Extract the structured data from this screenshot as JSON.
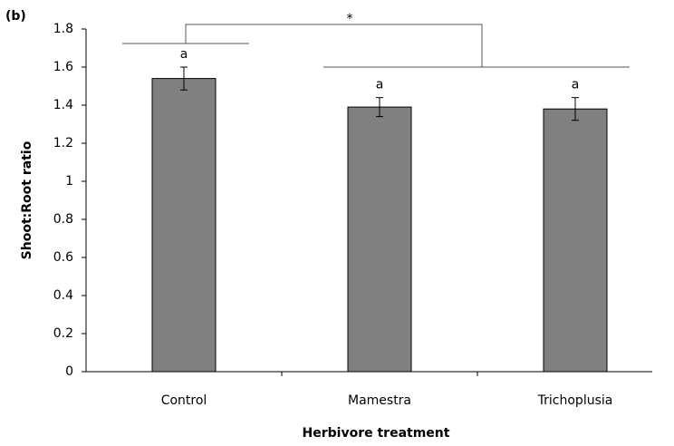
{
  "chart_data": {
    "type": "bar",
    "panel_label": "(b)",
    "ylabel": "Shoot:Root ratio",
    "xlabel": "Herbivore treatment",
    "categories": [
      "Control",
      "Mamestra",
      "Trichoplusia"
    ],
    "values": [
      1.54,
      1.39,
      1.38
    ],
    "errors": [
      0.06,
      0.05,
      0.06
    ],
    "group_letters": [
      "a",
      "a",
      "a"
    ],
    "significance": "*",
    "color": "#808080",
    "ylim": [
      0,
      1.8
    ],
    "yticks": [
      0,
      0.2,
      0.4,
      0.6,
      0.8,
      1,
      1.2,
      1.4,
      1.6,
      1.8
    ]
  }
}
